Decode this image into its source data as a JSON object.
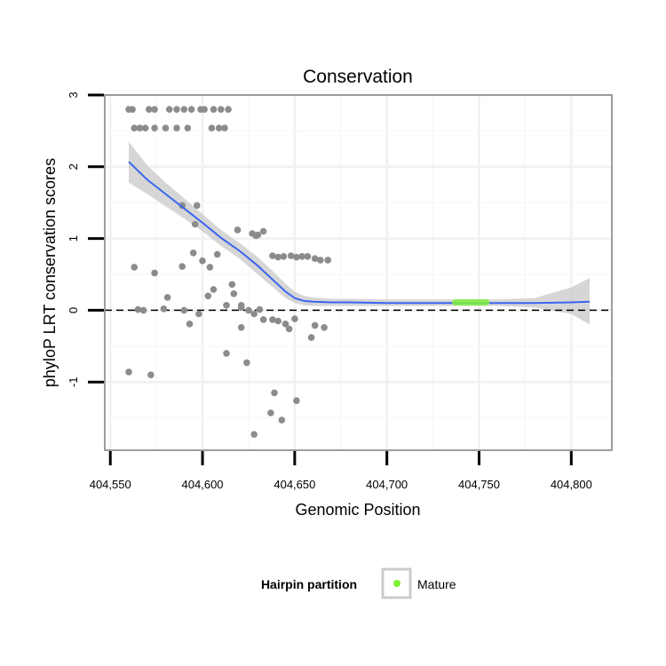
{
  "chart_data": {
    "type": "scatter",
    "title": "Conservation",
    "xlabel": "Genomic Position",
    "ylabel": "phyloP LRT conservation scores",
    "xlim": [
      404547,
      404822
    ],
    "ylim": [
      -1.95,
      3.0
    ],
    "x_ticks": [
      404550,
      404600,
      404650,
      404700,
      404750,
      404800
    ],
    "x_tick_labels": [
      "404,550",
      "404,600",
      "404,650",
      "404,700",
      "404,750",
      "404,800"
    ],
    "y_ticks": [
      -1,
      0,
      1,
      2,
      3
    ],
    "y_tick_labels": [
      "-1",
      "0",
      "1",
      "2",
      "3"
    ],
    "reference_line": {
      "y": 0,
      "style": "dashed"
    },
    "points_color": "#8c8c8c",
    "points": [
      [
        404560,
        2.8
      ],
      [
        404562,
        2.8
      ],
      [
        404571,
        2.8
      ],
      [
        404574,
        2.8
      ],
      [
        404582,
        2.8
      ],
      [
        404586,
        2.8
      ],
      [
        404590,
        2.8
      ],
      [
        404594,
        2.8
      ],
      [
        404599,
        2.8
      ],
      [
        404601,
        2.8
      ],
      [
        404606,
        2.8
      ],
      [
        404610,
        2.8
      ],
      [
        404614,
        2.8
      ],
      [
        404563,
        2.54
      ],
      [
        404566,
        2.54
      ],
      [
        404569,
        2.54
      ],
      [
        404574,
        2.54
      ],
      [
        404580,
        2.54
      ],
      [
        404586,
        2.54
      ],
      [
        404592,
        2.54
      ],
      [
        404605,
        2.54
      ],
      [
        404609,
        2.54
      ],
      [
        404612,
        2.54
      ],
      [
        404589,
        1.46
      ],
      [
        404597,
        1.46
      ],
      [
        404596,
        1.2
      ],
      [
        404595,
        0.8
      ],
      [
        404600,
        0.69
      ],
      [
        404604,
        0.6
      ],
      [
        404608,
        0.78
      ],
      [
        404603,
        0.2
      ],
      [
        404606,
        0.29
      ],
      [
        404613,
        0.07
      ],
      [
        404616,
        0.36
      ],
      [
        404621,
        0.07
      ],
      [
        404617,
        0.23
      ],
      [
        404619,
        1.12
      ],
      [
        404627,
        1.07
      ],
      [
        404629,
        1.04
      ],
      [
        404633,
        1.1
      ],
      [
        404630,
        1.05
      ],
      [
        404638,
        0.76
      ],
      [
        404641,
        0.74
      ],
      [
        404644,
        0.75
      ],
      [
        404648,
        0.76
      ],
      [
        404651,
        0.74
      ],
      [
        404654,
        0.75
      ],
      [
        404657,
        0.75
      ],
      [
        404661,
        0.72
      ],
      [
        404664,
        0.7
      ],
      [
        404668,
        0.7
      ],
      [
        404563,
        0.6
      ],
      [
        404565,
        0.01
      ],
      [
        404568,
        0.0
      ],
      [
        404574,
        0.52
      ],
      [
        404579,
        0.02
      ],
      [
        404581,
        0.18
      ],
      [
        404589,
        0.61
      ],
      [
        404590,
        0.0
      ],
      [
        404593,
        -0.19
      ],
      [
        404598,
        -0.05
      ],
      [
        404621,
        0.04
      ],
      [
        404625,
        0.0
      ],
      [
        404628,
        -0.05
      ],
      [
        404631,
        0.01
      ],
      [
        404633,
        -0.13
      ],
      [
        404638,
        -0.13
      ],
      [
        404641,
        -0.15
      ],
      [
        404645,
        -0.19
      ],
      [
        404647,
        -0.26
      ],
      [
        404650,
        -0.12
      ],
      [
        404659,
        -0.38
      ],
      [
        404661,
        -0.21
      ],
      [
        404666,
        -0.24
      ],
      [
        404613,
        -0.6
      ],
      [
        404621,
        -0.24
      ],
      [
        404624,
        -0.73
      ],
      [
        404560,
        -0.86
      ],
      [
        404572,
        -0.9
      ],
      [
        404639,
        -1.15
      ],
      [
        404637,
        -1.43
      ],
      [
        404643,
        -1.53
      ],
      [
        404651,
        -1.26
      ],
      [
        404628,
        -1.73
      ]
    ],
    "smooth_color": "#3a66ee",
    "smooth_curve": [
      [
        404560,
        2.07
      ],
      [
        404570,
        1.82
      ],
      [
        404580,
        1.62
      ],
      [
        404590,
        1.42
      ],
      [
        404600,
        1.22
      ],
      [
        404610,
        1.01
      ],
      [
        404620,
        0.83
      ],
      [
        404630,
        0.62
      ],
      [
        404640,
        0.38
      ],
      [
        404645,
        0.26
      ],
      [
        404650,
        0.17
      ],
      [
        404655,
        0.13
      ],
      [
        404660,
        0.12
      ],
      [
        404670,
        0.11
      ],
      [
        404680,
        0.11
      ],
      [
        404700,
        0.1
      ],
      [
        404720,
        0.1
      ],
      [
        404740,
        0.1
      ],
      [
        404760,
        0.1
      ],
      [
        404780,
        0.1
      ],
      [
        404800,
        0.11
      ],
      [
        404810,
        0.12
      ]
    ],
    "confidence_band": {
      "color": "#cccccc",
      "lower": [
        [
          404560,
          1.78
        ],
        [
          404570,
          1.62
        ],
        [
          404580,
          1.45
        ],
        [
          404590,
          1.28
        ],
        [
          404600,
          1.1
        ],
        [
          404610,
          0.9
        ],
        [
          404620,
          0.72
        ],
        [
          404630,
          0.5
        ],
        [
          404640,
          0.28
        ],
        [
          404645,
          0.17
        ],
        [
          404650,
          0.1
        ],
        [
          404655,
          0.07
        ],
        [
          404660,
          0.06
        ],
        [
          404670,
          0.06
        ],
        [
          404680,
          0.06
        ],
        [
          404700,
          0.06
        ],
        [
          404720,
          0.06
        ],
        [
          404740,
          0.06
        ],
        [
          404760,
          0.06
        ],
        [
          404780,
          0.04
        ],
        [
          404800,
          -0.05
        ],
        [
          404810,
          -0.2
        ]
      ],
      "upper": [
        [
          404560,
          2.35
        ],
        [
          404570,
          2.02
        ],
        [
          404580,
          1.78
        ],
        [
          404590,
          1.56
        ],
        [
          404600,
          1.34
        ],
        [
          404610,
          1.12
        ],
        [
          404620,
          0.94
        ],
        [
          404630,
          0.74
        ],
        [
          404640,
          0.5
        ],
        [
          404645,
          0.37
        ],
        [
          404650,
          0.26
        ],
        [
          404655,
          0.2
        ],
        [
          404660,
          0.18
        ],
        [
          404670,
          0.16
        ],
        [
          404680,
          0.16
        ],
        [
          404700,
          0.15
        ],
        [
          404720,
          0.15
        ],
        [
          404740,
          0.15
        ],
        [
          404760,
          0.15
        ],
        [
          404780,
          0.17
        ],
        [
          404800,
          0.32
        ],
        [
          404810,
          0.45
        ]
      ]
    },
    "highlight": {
      "x_start": 404737,
      "x_end": 404754,
      "y": 0.11,
      "color": "#7ef23a"
    },
    "legend": {
      "title": "Hairpin partition",
      "items": [
        {
          "label": "Mature",
          "color": "#7ef23a"
        }
      ],
      "placement": "bottom"
    }
  }
}
